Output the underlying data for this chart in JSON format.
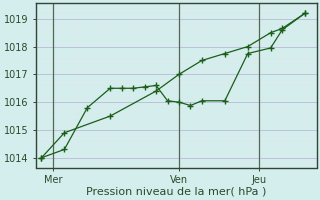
{
  "xlabel": "Pression niveau de la mer( hPa )",
  "bg_color": "#d4eeee",
  "grid_major_color": "#c0c0d8",
  "grid_minor_color": "#dde8e8",
  "line_color": "#1a5e1a",
  "line1_x": [
    0,
    2,
    4,
    6,
    7,
    8,
    9,
    10,
    11,
    12,
    13,
    14,
    16,
    18,
    20,
    21,
    23
  ],
  "line1_y": [
    1014.0,
    1014.3,
    1015.8,
    1016.5,
    1016.5,
    1016.5,
    1016.55,
    1016.6,
    1016.05,
    1016.0,
    1015.88,
    1016.05,
    1016.05,
    1017.75,
    1017.95,
    1018.6,
    1019.2
  ],
  "line2_x": [
    0,
    2,
    6,
    10,
    12,
    14,
    16,
    18,
    20,
    21,
    23
  ],
  "line2_y": [
    1014.0,
    1014.9,
    1015.5,
    1016.4,
    1017.0,
    1017.5,
    1017.75,
    1018.0,
    1018.5,
    1018.65,
    1019.2
  ],
  "xtick_positions": [
    1,
    12,
    19
  ],
  "xtick_labels": [
    "Mer",
    "Ven",
    "Jeu"
  ],
  "vline_positions": [
    1,
    12,
    19
  ],
  "ylim": [
    1013.65,
    1019.55
  ],
  "xlim": [
    -0.5,
    24
  ],
  "ytick_values": [
    1014,
    1015,
    1016,
    1017,
    1018,
    1019
  ],
  "xlabel_fontsize": 8,
  "tick_fontsize": 7
}
